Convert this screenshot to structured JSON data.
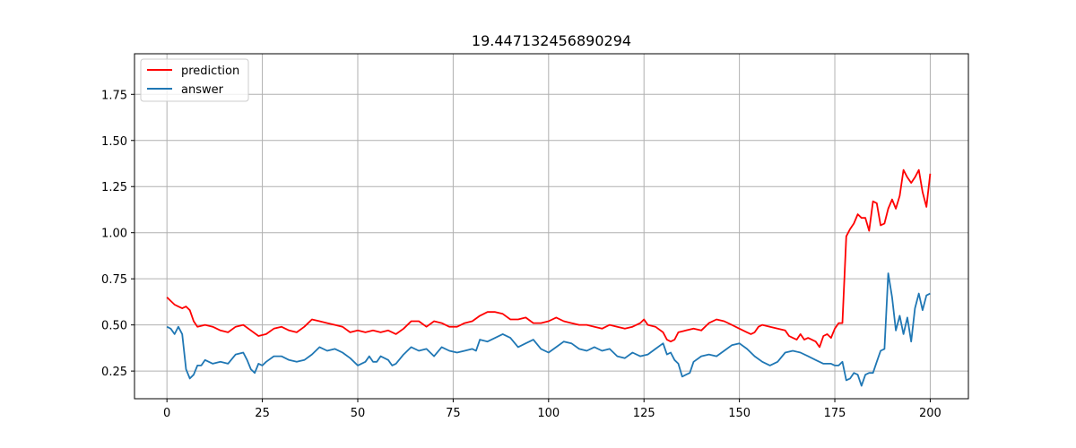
{
  "chart_data": {
    "type": "line",
    "title": "19.447132456890294",
    "xlabel": "",
    "ylabel": "",
    "xlim": [
      -8.5,
      210
    ],
    "ylim": [
      0.1,
      1.97
    ],
    "xticks": [
      0,
      25,
      50,
      75,
      100,
      125,
      150,
      175,
      200
    ],
    "yticks": [
      0.25,
      0.5,
      0.75,
      1.0,
      1.25,
      1.5,
      1.75
    ],
    "ytick_labels": [
      "0.25",
      "0.50",
      "0.75",
      "1.00",
      "1.25",
      "1.50",
      "1.75"
    ],
    "grid": true,
    "legend_position": "upper-left",
    "series": [
      {
        "name": "prediction",
        "color": "#ff0000",
        "points": [
          [
            0,
            0.65
          ],
          [
            1,
            0.63
          ],
          [
            2,
            0.61
          ],
          [
            3,
            0.6
          ],
          [
            4,
            0.59
          ],
          [
            5,
            0.6
          ],
          [
            6,
            0.58
          ],
          [
            7,
            0.52
          ],
          [
            8,
            0.49
          ],
          [
            10,
            0.5
          ],
          [
            12,
            0.49
          ],
          [
            14,
            0.47
          ],
          [
            16,
            0.46
          ],
          [
            18,
            0.49
          ],
          [
            20,
            0.5
          ],
          [
            22,
            0.47
          ],
          [
            24,
            0.44
          ],
          [
            26,
            0.45
          ],
          [
            28,
            0.48
          ],
          [
            30,
            0.49
          ],
          [
            32,
            0.47
          ],
          [
            34,
            0.46
          ],
          [
            36,
            0.49
          ],
          [
            38,
            0.53
          ],
          [
            40,
            0.52
          ],
          [
            42,
            0.51
          ],
          [
            44,
            0.5
          ],
          [
            46,
            0.49
          ],
          [
            48,
            0.46
          ],
          [
            50,
            0.47
          ],
          [
            52,
            0.46
          ],
          [
            54,
            0.47
          ],
          [
            56,
            0.46
          ],
          [
            58,
            0.47
          ],
          [
            60,
            0.45
          ],
          [
            62,
            0.48
          ],
          [
            64,
            0.52
          ],
          [
            66,
            0.52
          ],
          [
            68,
            0.49
          ],
          [
            70,
            0.52
          ],
          [
            72,
            0.51
          ],
          [
            74,
            0.49
          ],
          [
            76,
            0.49
          ],
          [
            78,
            0.51
          ],
          [
            80,
            0.52
          ],
          [
            82,
            0.55
          ],
          [
            84,
            0.57
          ],
          [
            86,
            0.57
          ],
          [
            88,
            0.56
          ],
          [
            90,
            0.53
          ],
          [
            92,
            0.53
          ],
          [
            94,
            0.54
          ],
          [
            96,
            0.51
          ],
          [
            98,
            0.51
          ],
          [
            100,
            0.52
          ],
          [
            102,
            0.54
          ],
          [
            104,
            0.52
          ],
          [
            106,
            0.51
          ],
          [
            108,
            0.5
          ],
          [
            110,
            0.5
          ],
          [
            112,
            0.49
          ],
          [
            114,
            0.48
          ],
          [
            116,
            0.5
          ],
          [
            118,
            0.49
          ],
          [
            120,
            0.48
          ],
          [
            122,
            0.49
          ],
          [
            124,
            0.51
          ],
          [
            125,
            0.53
          ],
          [
            126,
            0.5
          ],
          [
            128,
            0.49
          ],
          [
            130,
            0.46
          ],
          [
            131,
            0.42
          ],
          [
            132,
            0.41
          ],
          [
            133,
            0.42
          ],
          [
            134,
            0.46
          ],
          [
            136,
            0.47
          ],
          [
            138,
            0.48
          ],
          [
            140,
            0.47
          ],
          [
            142,
            0.51
          ],
          [
            144,
            0.53
          ],
          [
            146,
            0.52
          ],
          [
            148,
            0.5
          ],
          [
            150,
            0.48
          ],
          [
            152,
            0.46
          ],
          [
            153,
            0.45
          ],
          [
            154,
            0.46
          ],
          [
            155,
            0.49
          ],
          [
            156,
            0.5
          ],
          [
            158,
            0.49
          ],
          [
            160,
            0.48
          ],
          [
            162,
            0.47
          ],
          [
            163,
            0.44
          ],
          [
            164,
            0.43
          ],
          [
            165,
            0.42
          ],
          [
            166,
            0.45
          ],
          [
            167,
            0.42
          ],
          [
            168,
            0.43
          ],
          [
            170,
            0.41
          ],
          [
            171,
            0.38
          ],
          [
            172,
            0.44
          ],
          [
            173,
            0.45
          ],
          [
            174,
            0.43
          ],
          [
            175,
            0.48
          ],
          [
            176,
            0.51
          ],
          [
            177,
            0.51
          ],
          [
            178,
            0.98
          ],
          [
            179,
            1.02
          ],
          [
            180,
            1.05
          ],
          [
            181,
            1.1
          ],
          [
            182,
            1.08
          ],
          [
            183,
            1.08
          ],
          [
            184,
            1.01
          ],
          [
            185,
            1.17
          ],
          [
            186,
            1.16
          ],
          [
            187,
            1.04
          ],
          [
            188,
            1.05
          ],
          [
            189,
            1.13
          ],
          [
            190,
            1.18
          ],
          [
            191,
            1.13
          ],
          [
            192,
            1.2
          ],
          [
            193,
            1.34
          ],
          [
            194,
            1.3
          ],
          [
            195,
            1.27
          ],
          [
            196,
            1.3
          ],
          [
            197,
            1.34
          ],
          [
            198,
            1.22
          ],
          [
            199,
            1.14
          ],
          [
            200,
            1.32
          ]
        ]
      },
      {
        "name": "answer",
        "color": "#1f77b4",
        "points": [
          [
            0,
            0.49
          ],
          [
            1,
            0.48
          ],
          [
            2,
            0.45
          ],
          [
            3,
            0.49
          ],
          [
            4,
            0.45
          ],
          [
            5,
            0.26
          ],
          [
            6,
            0.21
          ],
          [
            7,
            0.23
          ],
          [
            8,
            0.28
          ],
          [
            9,
            0.28
          ],
          [
            10,
            0.31
          ],
          [
            12,
            0.29
          ],
          [
            14,
            0.3
          ],
          [
            16,
            0.29
          ],
          [
            18,
            0.34
          ],
          [
            20,
            0.35
          ],
          [
            21,
            0.31
          ],
          [
            22,
            0.26
          ],
          [
            23,
            0.24
          ],
          [
            24,
            0.29
          ],
          [
            25,
            0.28
          ],
          [
            26,
            0.3
          ],
          [
            28,
            0.33
          ],
          [
            30,
            0.33
          ],
          [
            32,
            0.31
          ],
          [
            34,
            0.3
          ],
          [
            36,
            0.31
          ],
          [
            38,
            0.34
          ],
          [
            40,
            0.38
          ],
          [
            42,
            0.36
          ],
          [
            44,
            0.37
          ],
          [
            46,
            0.35
          ],
          [
            48,
            0.32
          ],
          [
            50,
            0.28
          ],
          [
            52,
            0.3
          ],
          [
            53,
            0.33
          ],
          [
            54,
            0.3
          ],
          [
            55,
            0.3
          ],
          [
            56,
            0.33
          ],
          [
            58,
            0.31
          ],
          [
            59,
            0.28
          ],
          [
            60,
            0.29
          ],
          [
            62,
            0.34
          ],
          [
            64,
            0.38
          ],
          [
            66,
            0.36
          ],
          [
            68,
            0.37
          ],
          [
            70,
            0.33
          ],
          [
            72,
            0.38
          ],
          [
            74,
            0.36
          ],
          [
            76,
            0.35
          ],
          [
            78,
            0.36
          ],
          [
            80,
            0.37
          ],
          [
            81,
            0.36
          ],
          [
            82,
            0.42
          ],
          [
            84,
            0.41
          ],
          [
            86,
            0.43
          ],
          [
            88,
            0.45
          ],
          [
            90,
            0.43
          ],
          [
            92,
            0.38
          ],
          [
            94,
            0.4
          ],
          [
            96,
            0.42
          ],
          [
            98,
            0.37
          ],
          [
            100,
            0.35
          ],
          [
            102,
            0.38
          ],
          [
            104,
            0.41
          ],
          [
            106,
            0.4
          ],
          [
            108,
            0.37
          ],
          [
            110,
            0.36
          ],
          [
            112,
            0.38
          ],
          [
            114,
            0.36
          ],
          [
            116,
            0.37
          ],
          [
            118,
            0.33
          ],
          [
            120,
            0.32
          ],
          [
            122,
            0.35
          ],
          [
            124,
            0.33
          ],
          [
            126,
            0.34
          ],
          [
            128,
            0.37
          ],
          [
            130,
            0.4
          ],
          [
            131,
            0.34
          ],
          [
            132,
            0.35
          ],
          [
            133,
            0.31
          ],
          [
            134,
            0.29
          ],
          [
            135,
            0.22
          ],
          [
            136,
            0.23
          ],
          [
            137,
            0.24
          ],
          [
            138,
            0.3
          ],
          [
            140,
            0.33
          ],
          [
            142,
            0.34
          ],
          [
            144,
            0.33
          ],
          [
            146,
            0.36
          ],
          [
            148,
            0.39
          ],
          [
            150,
            0.4
          ],
          [
            152,
            0.37
          ],
          [
            154,
            0.33
          ],
          [
            156,
            0.3
          ],
          [
            158,
            0.28
          ],
          [
            160,
            0.3
          ],
          [
            162,
            0.35
          ],
          [
            164,
            0.36
          ],
          [
            166,
            0.35
          ],
          [
            168,
            0.33
          ],
          [
            170,
            0.31
          ],
          [
            172,
            0.29
          ],
          [
            174,
            0.29
          ],
          [
            175,
            0.28
          ],
          [
            176,
            0.28
          ],
          [
            177,
            0.3
          ],
          [
            178,
            0.2
          ],
          [
            179,
            0.21
          ],
          [
            180,
            0.24
          ],
          [
            181,
            0.23
          ],
          [
            182,
            0.17
          ],
          [
            183,
            0.23
          ],
          [
            184,
            0.24
          ],
          [
            185,
            0.24
          ],
          [
            186,
            0.3
          ],
          [
            187,
            0.36
          ],
          [
            188,
            0.37
          ],
          [
            189,
            0.78
          ],
          [
            190,
            0.65
          ],
          [
            191,
            0.47
          ],
          [
            192,
            0.55
          ],
          [
            193,
            0.45
          ],
          [
            194,
            0.54
          ],
          [
            195,
            0.41
          ],
          [
            196,
            0.59
          ],
          [
            197,
            0.67
          ],
          [
            198,
            0.58
          ],
          [
            199,
            0.66
          ],
          [
            200,
            0.67
          ]
        ]
      }
    ]
  }
}
